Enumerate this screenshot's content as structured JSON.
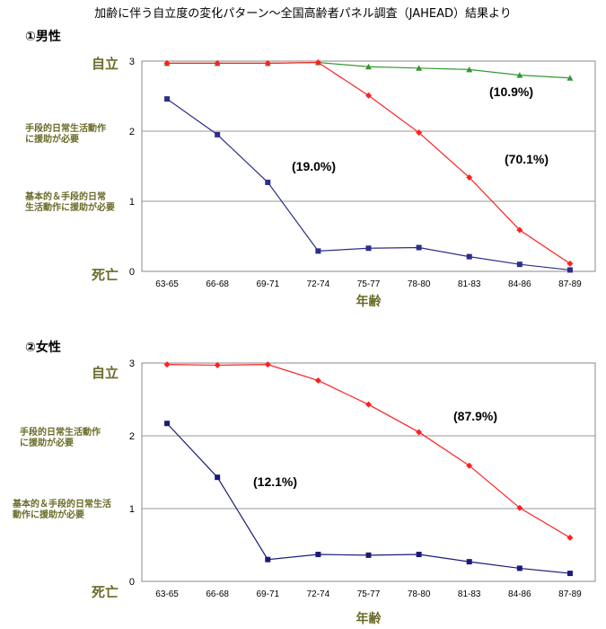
{
  "title": "加齢に伴う自立度の変化パターン～全国高齢者パネル調査（JAHEAD）結果より",
  "colors": {
    "red": "#ff2020",
    "green": "#339933",
    "navy": "#2d2d8c",
    "level_text": "#6b6b2a",
    "grid": "#999999"
  },
  "panels": [
    {
      "label": "①男性",
      "level_top": "自立",
      "level_mid": "手段的日常生活動作\nに援助が必要",
      "level_low": "基本的＆手段的日常\n生活動作に援助が必要",
      "level_bottom": "死亡",
      "xlabel": "年齢"
    },
    {
      "label": "②女性",
      "level_top": "自立",
      "level_mid": "手段的日常生活動作\nに援助が必要",
      "level_low": "基本的＆手段的日常生活\n動作に援助が必要",
      "level_bottom": "死亡",
      "xlabel": "年齢"
    }
  ],
  "chart_data": [
    {
      "type": "line",
      "title": "①男性",
      "xlabel": "年齢",
      "ylabel": "",
      "ylim": [
        0,
        3
      ],
      "yticks": [
        "0",
        "1",
        "2",
        "3"
      ],
      "categories": [
        "63-65",
        "66-68",
        "69-71",
        "72-74",
        "75-77",
        "78-80",
        "81-83",
        "84-86",
        "87-89"
      ],
      "grid": true,
      "series": [
        {
          "name": "(10.9%)",
          "color": "#339933",
          "marker": "triangle",
          "values": [
            2.97,
            2.97,
            2.97,
            2.98,
            2.92,
            2.9,
            2.88,
            2.8,
            2.76
          ]
        },
        {
          "name": "(70.1%)",
          "color": "#ff2020",
          "marker": "diamond",
          "values": [
            2.97,
            2.97,
            2.97,
            2.98,
            2.51,
            1.98,
            1.34,
            0.59,
            0.11
          ]
        },
        {
          "name": "(19.0%)",
          "color": "#2d2d8c",
          "marker": "square",
          "values": [
            2.46,
            1.95,
            1.27,
            0.29,
            0.33,
            0.34,
            0.21,
            0.1,
            0.02
          ]
        }
      ],
      "annotations": [
        "(10.9%)",
        "(70.1%)",
        "(19.0%)"
      ]
    },
    {
      "type": "line",
      "title": "②女性",
      "xlabel": "年齢",
      "ylabel": "",
      "ylim": [
        0,
        3
      ],
      "yticks": [
        "0",
        "1",
        "2",
        "3"
      ],
      "categories": [
        "63-65",
        "66-68",
        "69-71",
        "72-74",
        "75-77",
        "78-80",
        "81-83",
        "84-86",
        "87-89"
      ],
      "grid": true,
      "series": [
        {
          "name": "(87.9%)",
          "color": "#ff2020",
          "marker": "diamond",
          "values": [
            2.98,
            2.97,
            2.98,
            2.76,
            2.43,
            2.05,
            1.59,
            1.01,
            0.6
          ]
        },
        {
          "name": "(12.1%)",
          "color": "#1a1a7a",
          "marker": "square",
          "values": [
            2.17,
            1.43,
            0.3,
            0.37,
            0.36,
            0.37,
            0.27,
            0.18,
            0.11
          ]
        }
      ],
      "annotations": [
        "(87.9%)",
        "(12.1%)"
      ]
    }
  ]
}
